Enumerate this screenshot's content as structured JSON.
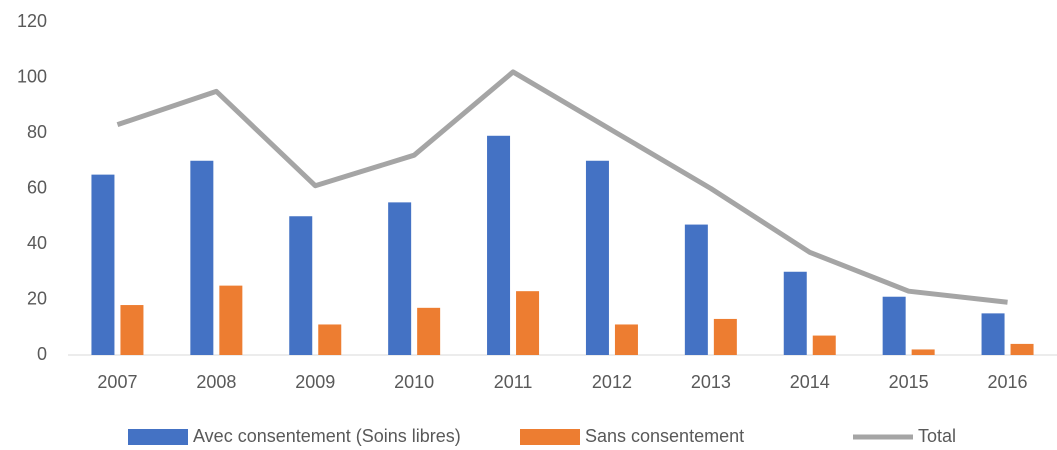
{
  "chart_data": {
    "type": "bar_line",
    "categories": [
      "2007",
      "2008",
      "2009",
      "2010",
      "2011",
      "2012",
      "2013",
      "2014",
      "2015",
      "2016"
    ],
    "series": [
      {
        "name": "Avec consentement (Soins libres)",
        "color": "#4472c4",
        "type": "bar",
        "values": [
          65,
          70,
          50,
          55,
          79,
          70,
          47,
          30,
          21,
          15
        ]
      },
      {
        "name": "Sans consentement",
        "color": "#ed7d31",
        "type": "bar",
        "values": [
          18,
          25,
          11,
          17,
          23,
          11,
          13,
          7,
          2,
          4
        ]
      },
      {
        "name": "Total",
        "color": "#a5a5a5",
        "type": "line",
        "values": [
          83,
          95,
          61,
          72,
          102,
          81,
          60,
          37,
          23,
          19
        ]
      }
    ],
    "ylim": [
      0,
      120
    ],
    "yticks": [
      0,
      20,
      40,
      60,
      80,
      100,
      120
    ],
    "grid": false,
    "legend": "bottom"
  }
}
